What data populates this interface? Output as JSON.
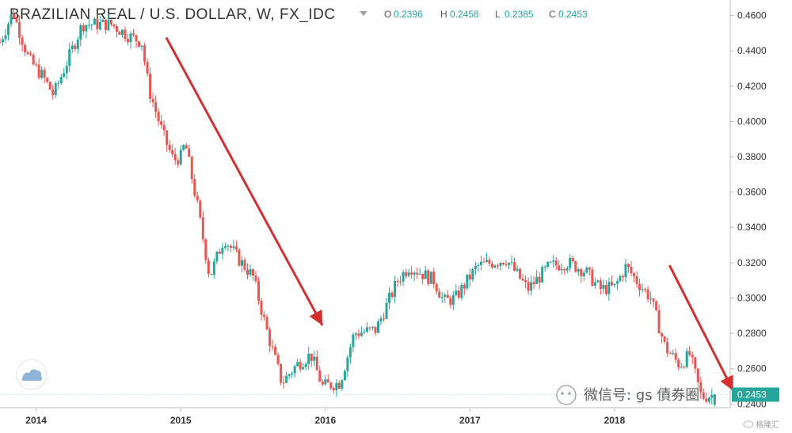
{
  "header": {
    "title": "BRAZILIAN REAL / U.S. DOLLAR, W, FX_IDC",
    "dropdown_icon": "chevron-down-icon",
    "ohlc": [
      {
        "key": "O",
        "value": "0.2396"
      },
      {
        "key": "H",
        "value": "0.2458"
      },
      {
        "key": "L",
        "value": "0.2385"
      },
      {
        "key": "C",
        "value": "0.2453"
      }
    ]
  },
  "last_price_label": "0.2453",
  "colors": {
    "up": "#26a69a",
    "down": "#ef5350",
    "arrow": "#d32f2f",
    "axis": "#bdbdbd",
    "last_label_bg": "#26a69a"
  },
  "watermark": {
    "wechat_text": "微信号: gs  債券圈",
    "weibo_text": "格隆汇",
    "logo_icon": "tradingview-cloud-icon"
  },
  "chart_data": {
    "type": "candlestick",
    "title": "BRAZILIAN REAL / U.S. DOLLAR, W, FX_IDC",
    "xlabel": "",
    "ylabel": "",
    "x_range": [
      2013.75,
      2018.8
    ],
    "ylim": [
      0.2325,
      0.4625
    ],
    "x_ticks": [
      "2014",
      "2015",
      "2016",
      "2017",
      "2018"
    ],
    "y_ticks": [
      "0.4600",
      "0.4400",
      "0.4200",
      "0.4000",
      "0.3800",
      "0.3600",
      "0.3400",
      "0.3200",
      "0.3000",
      "0.2800",
      "0.2600",
      "0.2400"
    ],
    "last_value": 0.2453,
    "trend_path": [
      [
        2013.75,
        0.445
      ],
      [
        2013.84,
        0.462
      ],
      [
        2013.95,
        0.435
      ],
      [
        2014.05,
        0.425
      ],
      [
        2014.12,
        0.415
      ],
      [
        2014.22,
        0.435
      ],
      [
        2014.32,
        0.455
      ],
      [
        2014.52,
        0.455
      ],
      [
        2014.65,
        0.448
      ],
      [
        2014.73,
        0.445
      ],
      [
        2014.78,
        0.418
      ],
      [
        2014.88,
        0.392
      ],
      [
        2014.95,
        0.378
      ],
      [
        2015.0,
        0.38
      ],
      [
        2015.03,
        0.388
      ],
      [
        2015.12,
        0.35
      ],
      [
        2015.2,
        0.312
      ],
      [
        2015.3,
        0.334
      ],
      [
        2015.4,
        0.322
      ],
      [
        2015.5,
        0.312
      ],
      [
        2015.6,
        0.28
      ],
      [
        2015.7,
        0.252
      ],
      [
        2015.8,
        0.262
      ],
      [
        2015.9,
        0.268
      ],
      [
        2015.98,
        0.25
      ],
      [
        2016.1,
        0.252
      ],
      [
        2016.2,
        0.28
      ],
      [
        2016.35,
        0.282
      ],
      [
        2016.5,
        0.31
      ],
      [
        2016.58,
        0.318
      ],
      [
        2016.75,
        0.31
      ],
      [
        2016.82,
        0.298
      ],
      [
        2016.9,
        0.3
      ],
      [
        2017.05,
        0.318
      ],
      [
        2017.25,
        0.322
      ],
      [
        2017.4,
        0.305
      ],
      [
        2017.55,
        0.318
      ],
      [
        2017.68,
        0.32
      ],
      [
        2017.8,
        0.315
      ],
      [
        2017.9,
        0.305
      ],
      [
        2018.0,
        0.306
      ],
      [
        2018.08,
        0.318
      ],
      [
        2018.15,
        0.31
      ],
      [
        2018.25,
        0.3
      ],
      [
        2018.35,
        0.272
      ],
      [
        2018.45,
        0.262
      ],
      [
        2018.52,
        0.268
      ],
      [
        2018.6,
        0.244
      ],
      [
        2018.7,
        0.2453
      ]
    ],
    "annotations": [
      {
        "type": "arrow",
        "from": [
          2014.9,
          0.4475
        ],
        "to": [
          2015.98,
          0.2845
        ]
      },
      {
        "type": "arrow",
        "from": [
          2018.38,
          0.3185
        ],
        "to": [
          2018.82,
          0.2475
        ]
      }
    ],
    "current_ohlc": {
      "open": 0.2396,
      "high": 0.2458,
      "low": 0.2385,
      "close": 0.2453
    }
  }
}
